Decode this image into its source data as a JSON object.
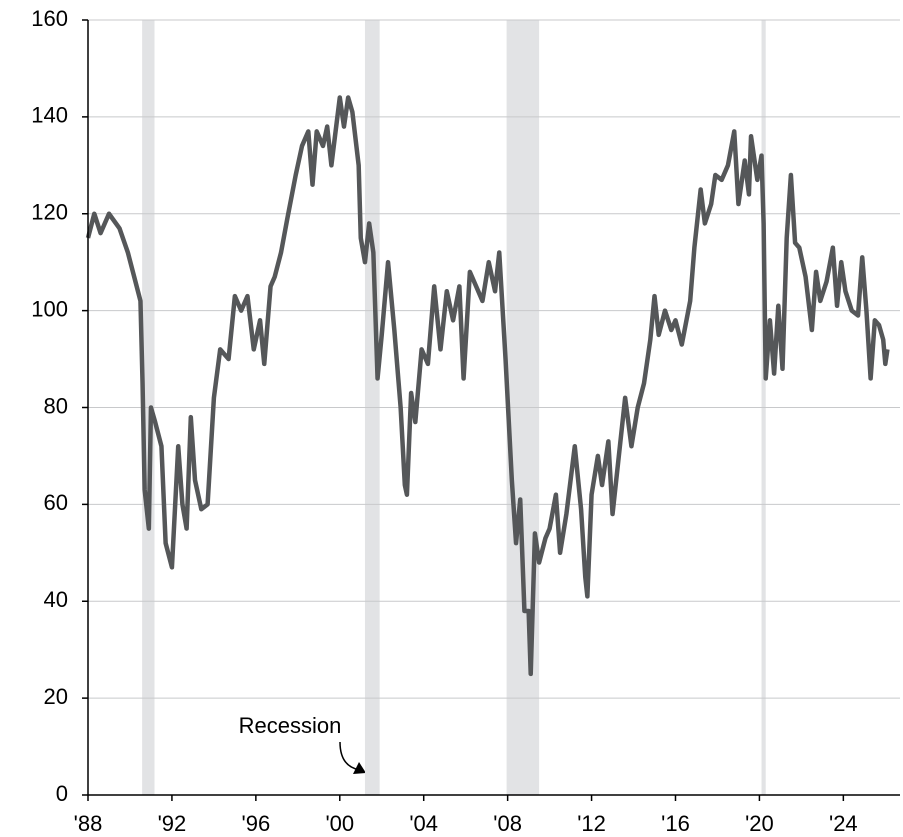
{
  "chart_data": {
    "type": "line",
    "annotations": [
      "Recession"
    ],
    "recessions": [
      [
        1990.58,
        1991.17
      ],
      [
        2001.2,
        2001.9
      ],
      [
        2007.95,
        2009.5
      ],
      [
        2020.1,
        2020.3
      ]
    ],
    "recession_color": "#e2e3e5",
    "xlim": [
      1988,
      2026.7
    ],
    "xticks": [
      {
        "value": 1988,
        "label": "'88"
      },
      {
        "value": 1992,
        "label": "'92"
      },
      {
        "value": 1996,
        "label": "'96"
      },
      {
        "value": 2000,
        "label": "'00"
      },
      {
        "value": 2004,
        "label": "'04"
      },
      {
        "value": 2008,
        "label": "'08"
      },
      {
        "value": 2012,
        "label": "'12"
      },
      {
        "value": 2016,
        "label": "'16"
      },
      {
        "value": 2020,
        "label": "'20"
      },
      {
        "value": 2024,
        "label": "'24"
      }
    ],
    "ylim": [
      0,
      160
    ],
    "yticks": [
      0,
      20,
      40,
      60,
      80,
      100,
      120,
      140,
      160
    ],
    "grid": true,
    "series": [
      {
        "color": "#555759",
        "x": [
          1988.0,
          1988.3,
          1988.6,
          1989.0,
          1989.5,
          1989.9,
          1990.2,
          1990.5,
          1990.6,
          1990.7,
          1990.9,
          1991.0,
          1991.2,
          1991.5,
          1991.7,
          1992.0,
          1992.3,
          1992.5,
          1992.7,
          1992.9,
          1993.1,
          1993.4,
          1993.7,
          1994.0,
          1994.3,
          1994.7,
          1995.0,
          1995.3,
          1995.6,
          1995.9,
          1996.2,
          1996.4,
          1996.7,
          1996.9,
          1997.2,
          1997.5,
          1997.9,
          1998.2,
          1998.5,
          1998.7,
          1998.9,
          1999.2,
          1999.4,
          1999.6,
          1999.8,
          2000.0,
          2000.2,
          2000.4,
          2000.6,
          2000.9,
          2001.0,
          2001.2,
          2001.4,
          2001.6,
          2001.8,
          2002.0,
          2002.3,
          2002.6,
          2002.9,
          2003.1,
          2003.2,
          2003.4,
          2003.6,
          2003.9,
          2004.2,
          2004.5,
          2004.8,
          2005.1,
          2005.4,
          2005.7,
          2005.9,
          2006.2,
          2006.5,
          2006.8,
          2007.1,
          2007.4,
          2007.6,
          2007.9,
          2008.2,
          2008.4,
          2008.6,
          2008.8,
          2009.0,
          2009.1,
          2009.3,
          2009.5,
          2009.8,
          2010.0,
          2010.3,
          2010.5,
          2010.8,
          2011.0,
          2011.2,
          2011.5,
          2011.7,
          2011.8,
          2012.0,
          2012.3,
          2012.5,
          2012.8,
          2013.0,
          2013.3,
          2013.6,
          2013.9,
          2014.2,
          2014.5,
          2014.8,
          2015.0,
          2015.2,
          2015.5,
          2015.8,
          2016.0,
          2016.3,
          2016.7,
          2016.9,
          2017.2,
          2017.4,
          2017.7,
          2017.9,
          2018.2,
          2018.5,
          2018.8,
          2019.0,
          2019.3,
          2019.5,
          2019.6,
          2019.9,
          2020.1,
          2020.2,
          2020.3,
          2020.5,
          2020.7,
          2020.9,
          2021.1,
          2021.3,
          2021.5,
          2021.7,
          2021.9,
          2022.2,
          2022.5,
          2022.7,
          2022.9,
          2023.2,
          2023.5,
          2023.7,
          2023.9,
          2024.1,
          2024.4,
          2024.7,
          2024.9,
          2025.1,
          2025.3,
          2025.5,
          2025.7,
          2025.9,
          2026.0,
          2026.1
        ],
        "values": [
          115,
          120,
          116,
          120,
          117,
          112,
          107,
          102,
          85,
          63,
          55,
          80,
          77,
          72,
          52,
          47,
          72,
          60,
          55,
          78,
          65,
          59,
          60,
          82,
          92,
          90,
          103,
          100,
          103,
          92,
          98,
          89,
          105,
          107,
          112,
          119,
          128,
          134,
          137,
          126,
          137,
          134,
          138,
          130,
          137,
          144,
          138,
          144,
          141,
          130,
          115,
          110,
          118,
          112,
          86,
          95,
          110,
          96,
          80,
          64,
          62,
          83,
          77,
          92,
          89,
          105,
          92,
          104,
          98,
          105,
          86,
          108,
          105,
          102,
          110,
          104,
          112,
          90,
          65,
          52,
          61,
          38,
          38,
          25,
          54,
          48,
          53,
          55,
          62,
          50,
          58,
          65,
          72,
          59,
          45,
          41,
          62,
          70,
          64,
          73,
          58,
          70,
          82,
          72,
          80,
          85,
          94,
          103,
          95,
          100,
          96,
          98,
          93,
          102,
          113,
          125,
          118,
          122,
          128,
          127,
          130,
          137,
          122,
          131,
          124,
          136,
          127,
          132,
          118,
          86,
          98,
          87,
          101,
          88,
          115,
          128,
          114,
          113,
          107,
          96,
          108,
          102,
          106,
          113,
          101,
          110,
          104,
          100,
          99,
          111,
          100,
          86,
          98,
          97,
          94,
          89,
          92
        ]
      }
    ]
  }
}
